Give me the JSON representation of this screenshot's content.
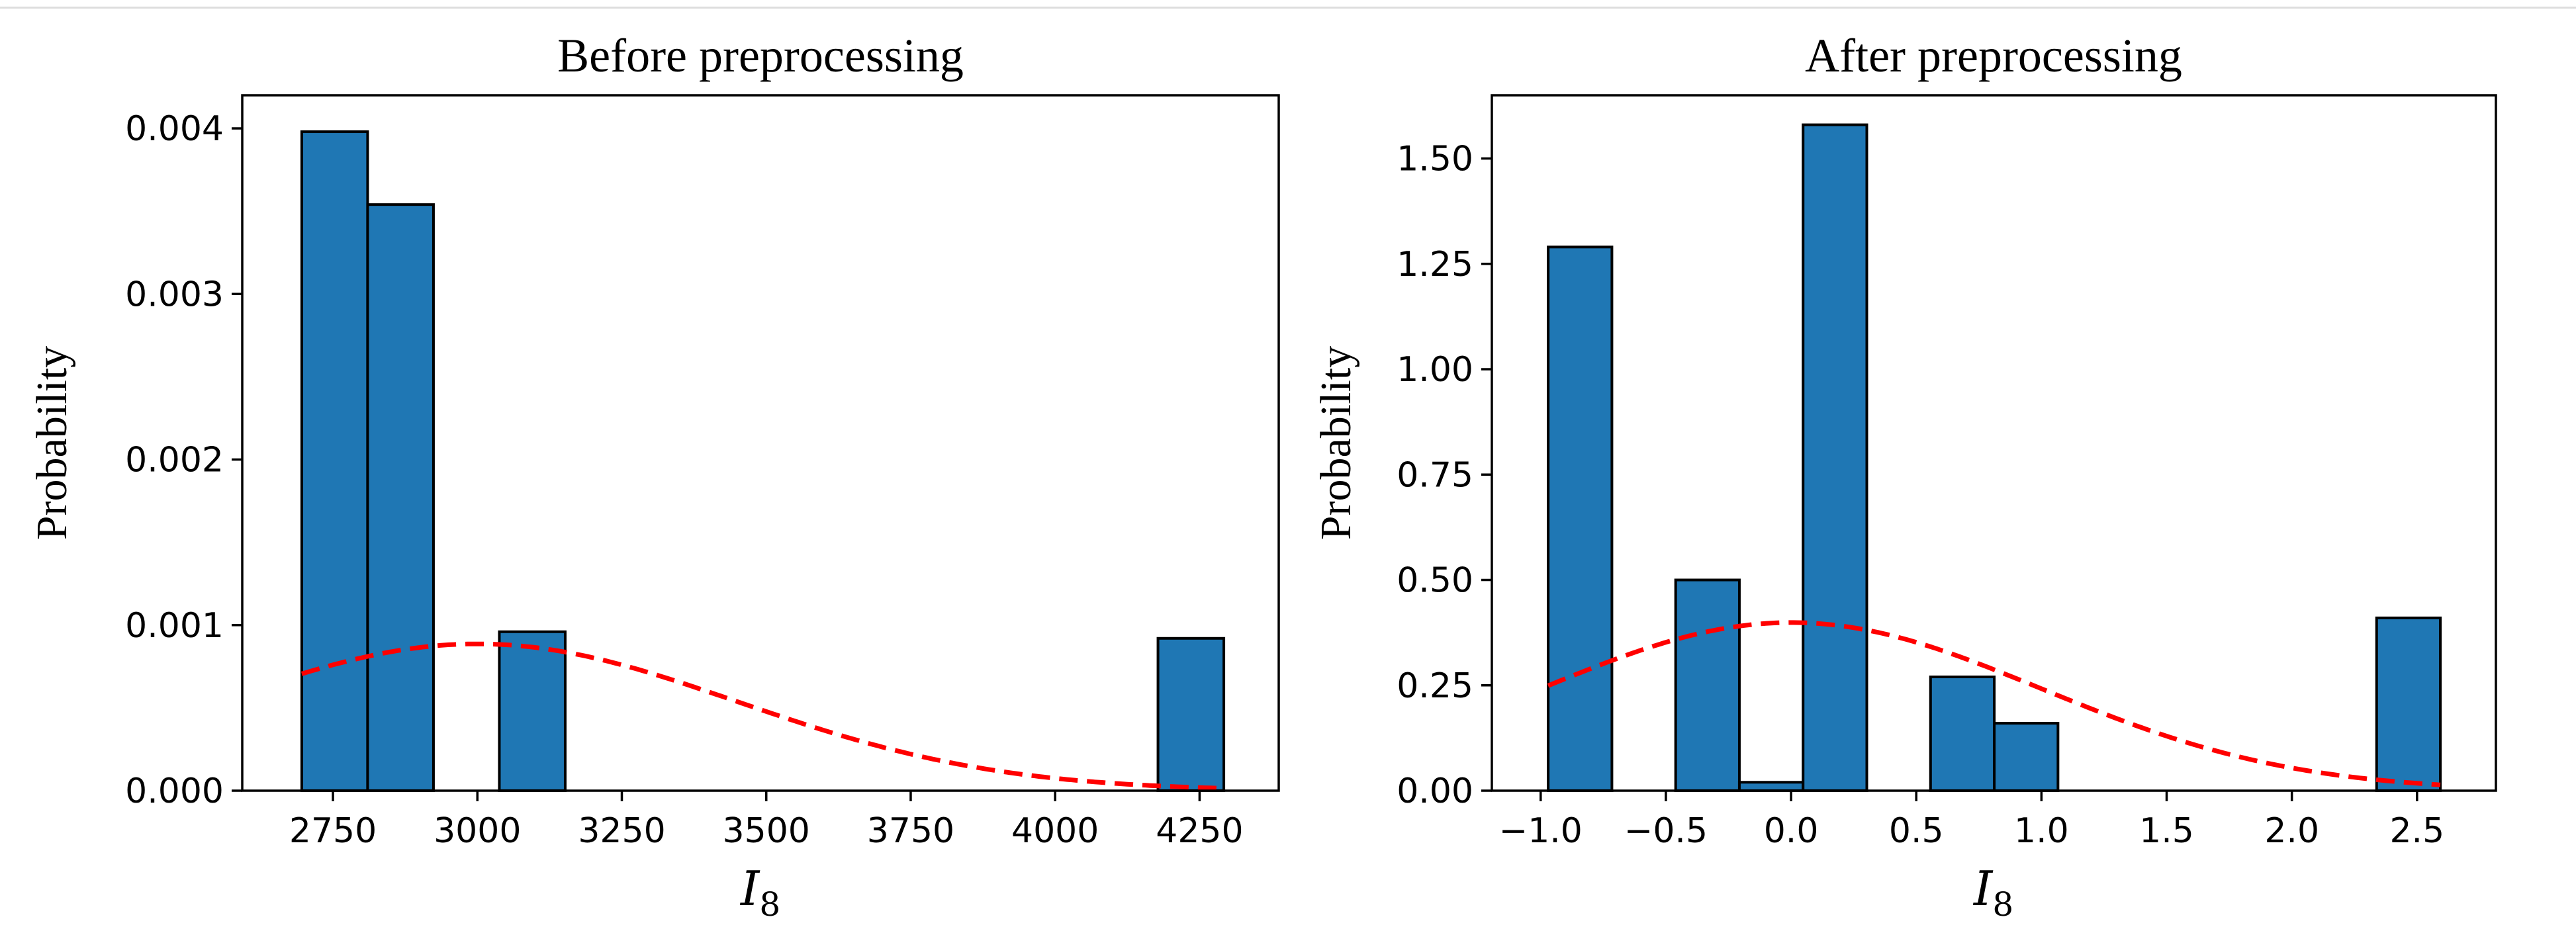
{
  "chart_data": [
    {
      "type": "bar",
      "title": "Before preprocessing",
      "xlabel_var": "I",
      "xlabel_sub": "8",
      "ylabel": "Probability",
      "xlim": [
        2593,
        4387
      ],
      "ylim": [
        0,
        0.0042
      ],
      "xticks": [
        2750,
        3000,
        3250,
        3500,
        3750,
        4000,
        4250
      ],
      "xtick_labels": [
        "2750",
        "3000",
        "3250",
        "3500",
        "3750",
        "4000",
        "4250"
      ],
      "yticks": [
        0,
        0.001,
        0.002,
        0.003,
        0.004
      ],
      "ytick_labels": [
        "0.000",
        "0.001",
        "0.002",
        "0.003",
        "0.004"
      ],
      "bin_edges": [
        2696,
        2810,
        2924,
        3038,
        3152,
        3266,
        3380,
        3494,
        3608,
        3722,
        3836,
        3950,
        4064,
        4178,
        4292
      ],
      "values": [
        0.00398,
        0.00354,
        0.0,
        0.00096,
        0.0,
        0.0,
        0.0,
        0.0,
        0.0,
        0.0,
        0.0,
        0.0,
        0.0,
        0.00092
      ],
      "curve": {
        "type": "normal_pdf",
        "mean": 3000,
        "std": 450,
        "x_range": [
          2696,
          4292
        ],
        "style": "red dashed"
      }
    },
    {
      "type": "bar",
      "title": "After preprocessing",
      "xlabel_var": "I",
      "xlabel_sub": "8",
      "ylabel": "Probability",
      "xlim": [
        -1.195,
        2.815
      ],
      "ylim": [
        0,
        1.65
      ],
      "xticks": [
        -1.0,
        -0.5,
        0.0,
        0.5,
        1.0,
        1.5,
        2.0,
        2.5
      ],
      "xtick_labels": [
        "−1.0",
        "−0.5",
        "0.0",
        "0.5",
        "1.0",
        "1.5",
        "2.0",
        "2.5"
      ],
      "yticks": [
        0,
        0.25,
        0.5,
        0.75,
        1.0,
        1.25,
        1.5
      ],
      "ytick_labels": [
        "0.00",
        "0.25",
        "0.50",
        "0.75",
        "1.00",
        "1.25",
        "1.50"
      ],
      "bin_edges": [
        -0.97,
        -0.7155,
        -0.461,
        -0.2065,
        0.048,
        0.3025,
        0.557,
        0.8115,
        1.066,
        1.3205,
        1.575,
        1.8295,
        2.084,
        2.3385,
        2.593
      ],
      "values": [
        1.29,
        0.0,
        0.5,
        0.02,
        1.58,
        0.0,
        0.27,
        0.16,
        0.0,
        0.0,
        0.0,
        0.0,
        0.0,
        0.41
      ],
      "curve": {
        "type": "normal_pdf",
        "mean": 0.0,
        "std": 1.0,
        "x_range": [
          -0.97,
          2.593
        ],
        "style": "red dashed"
      }
    }
  ]
}
